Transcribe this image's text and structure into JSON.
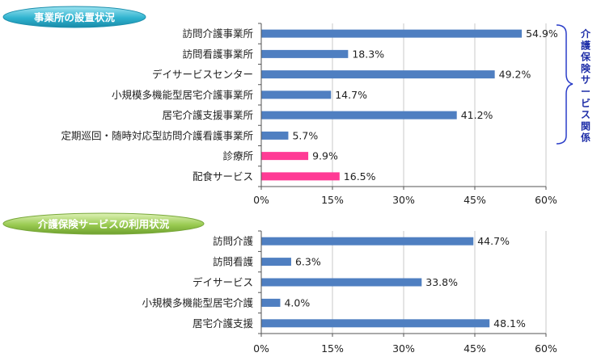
{
  "colors": {
    "bar_blue": "#4f7fc1",
    "bar_pink": "#ff3b95",
    "axis": "#555555",
    "grid": "#c8c8c8",
    "badge1_fill": "#2fb3cf",
    "badge2_fill": "#9acb52",
    "bracket": "#2a3dc8",
    "bracket_text": "#1e2ea8"
  },
  "chart_data": [
    {
      "type": "bar",
      "orientation": "horizontal",
      "title": "事業所の設置状況",
      "categories": [
        "訪問介護事業所",
        "訪問看護事業所",
        "デイサービスセンター",
        "小規模多機能型居宅介護事業所",
        "居宅介護支援事業所",
        "定期巡回・随時対応型訪問介護看護事業所",
        "診療所",
        "配食サービス"
      ],
      "values": [
        54.9,
        18.3,
        49.2,
        14.7,
        41.2,
        5.7,
        9.9,
        16.5
      ],
      "value_labels": [
        "54.9%",
        "18.3%",
        "49.2%",
        "14.7%",
        "41.2%",
        "5.7%",
        "9.9%",
        "16.5%"
      ],
      "bar_colors": [
        "bar_blue",
        "bar_blue",
        "bar_blue",
        "bar_blue",
        "bar_blue",
        "bar_blue",
        "bar_pink",
        "bar_pink"
      ],
      "xlim": [
        0,
        60
      ],
      "xticks": [
        0,
        15,
        30,
        45,
        60
      ],
      "xtick_labels": [
        "0%",
        "15%",
        "30%",
        "45%",
        "60%"
      ],
      "grid": true,
      "annotation": "介護保険サービス関係"
    },
    {
      "type": "bar",
      "orientation": "horizontal",
      "title": "介護保険サービスの利用状況",
      "categories": [
        "訪問介護",
        "訪問看護",
        "デイサービス",
        "小規模多機能型居宅介護",
        "居宅介護支援"
      ],
      "values": [
        44.7,
        6.3,
        33.8,
        4.0,
        48.1
      ],
      "value_labels": [
        "44.7%",
        "6.3%",
        "33.8%",
        "4.0%",
        "48.1%"
      ],
      "bar_colors": [
        "bar_blue",
        "bar_blue",
        "bar_blue",
        "bar_blue",
        "bar_blue"
      ],
      "xlim": [
        0,
        60
      ],
      "xticks": [
        0,
        15,
        30,
        45,
        60
      ],
      "xtick_labels": [
        "0%",
        "15%",
        "30%",
        "45%",
        "60%"
      ],
      "grid": true
    }
  ]
}
